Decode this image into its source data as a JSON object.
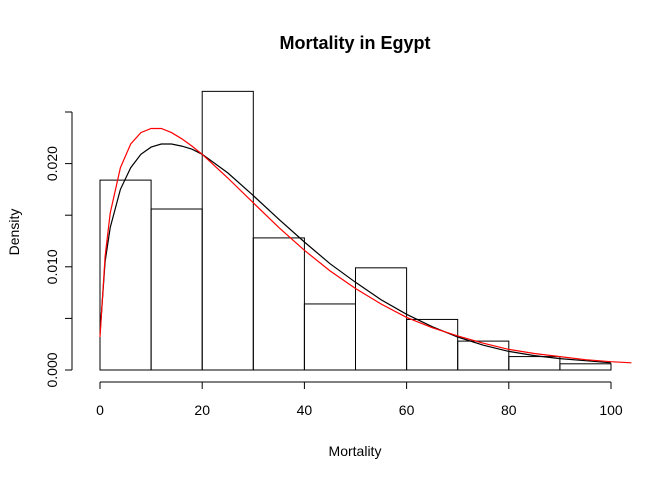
{
  "chart_data": {
    "type": "bar",
    "title": "Mortality in Egypt",
    "xlabel": "Mortality",
    "ylabel": "Density",
    "bins": [
      {
        "x0": 0,
        "x1": 10,
        "density": 0.0184
      },
      {
        "x0": 10,
        "x1": 20,
        "density": 0.0156
      },
      {
        "x0": 20,
        "x1": 30,
        "density": 0.027
      },
      {
        "x0": 30,
        "x1": 40,
        "density": 0.0128
      },
      {
        "x0": 40,
        "x1": 50,
        "density": 0.0064
      },
      {
        "x0": 50,
        "x1": 60,
        "density": 0.0099
      },
      {
        "x0": 60,
        "x1": 70,
        "density": 0.0049
      },
      {
        "x0": 70,
        "x1": 80,
        "density": 0.0028
      },
      {
        "x0": 80,
        "x1": 90,
        "density": 0.0013
      },
      {
        "x0": 90,
        "x1": 100,
        "density": 0.0006
      }
    ],
    "x_ticks": [
      0,
      20,
      40,
      60,
      80,
      100
    ],
    "y_ticks": [
      0.0,
      0.005,
      0.01,
      0.015,
      0.02,
      0.025
    ],
    "y_tick_labels": [
      "0.000",
      "",
      "0.010",
      "",
      "0.020",
      ""
    ],
    "xlim": [
      0,
      104
    ],
    "ylim": [
      0,
      0.025
    ],
    "grid": false,
    "series": [
      {
        "color": "#000000",
        "x": [
          0,
          1,
          2,
          4,
          6,
          8,
          10,
          12,
          14,
          16,
          18,
          20,
          25,
          30,
          35,
          40,
          45,
          50,
          55,
          60,
          65,
          70,
          75,
          80,
          85,
          90,
          95,
          100
        ],
        "y": [
          0.0035,
          0.0105,
          0.0138,
          0.0175,
          0.0196,
          0.0209,
          0.0216,
          0.0219,
          0.0219,
          0.0217,
          0.0214,
          0.0209,
          0.0191,
          0.0169,
          0.0146,
          0.0124,
          0.0103,
          0.0085,
          0.0068,
          0.0054,
          0.0042,
          0.0032,
          0.0024,
          0.0018,
          0.0014,
          0.0011,
          0.0009,
          0.0007
        ]
      },
      {
        "color": "#ff0000",
        "x": [
          0,
          1,
          2,
          4,
          6,
          8,
          10,
          12,
          14,
          16,
          18,
          20,
          25,
          30,
          35,
          40,
          45,
          50,
          55,
          60,
          65,
          70,
          75,
          80,
          85,
          90,
          95,
          100,
          104
        ],
        "y": [
          0.0032,
          0.011,
          0.0152,
          0.0196,
          0.0219,
          0.023,
          0.0234,
          0.0234,
          0.023,
          0.0224,
          0.0217,
          0.0209,
          0.0186,
          0.0162,
          0.0138,
          0.0116,
          0.0096,
          0.0079,
          0.0064,
          0.0051,
          0.0041,
          0.0033,
          0.0026,
          0.002,
          0.0016,
          0.0013,
          0.001,
          0.0008,
          0.0007
        ]
      }
    ]
  }
}
